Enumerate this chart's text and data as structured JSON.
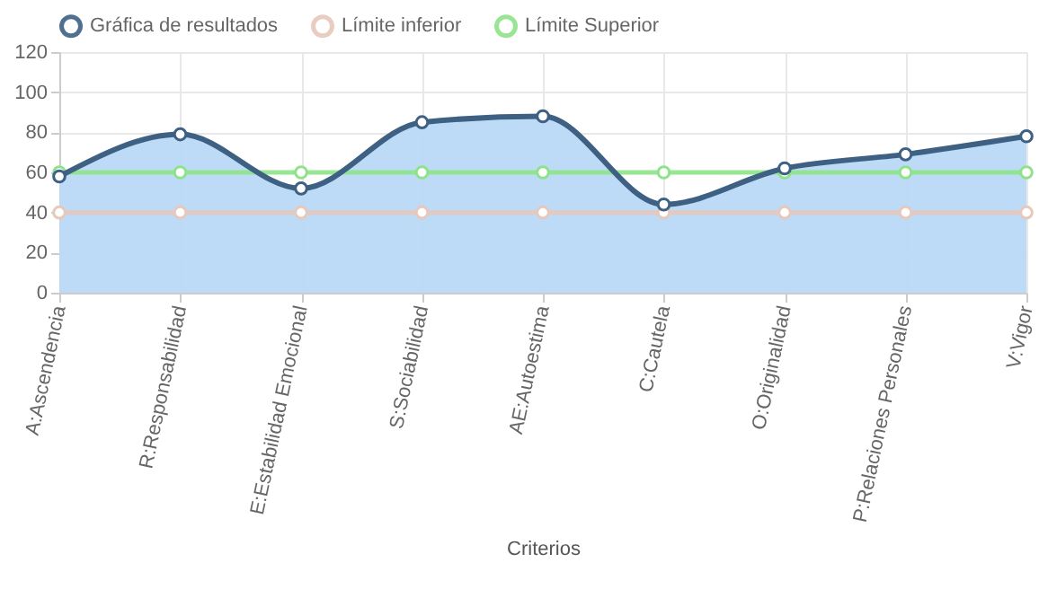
{
  "chart_data": {
    "type": "area",
    "xlabel": "Criterios",
    "categories": [
      "A:Ascendencia",
      "R:Responsabilidad",
      "E:Estabilidad Emocional",
      "S:Sociabilidad",
      "AE:Autoestima",
      "C:Cautela",
      "O:Originalidad",
      "P:Relaciones Personales",
      "V:Vigor"
    ],
    "series": [
      {
        "name": "Gráfica de resultados",
        "color": "#3e6183",
        "values": [
          58,
          79,
          52,
          85,
          88,
          44,
          62,
          69,
          78
        ]
      },
      {
        "name": "Límite inferior",
        "type": "line",
        "color": "#e6c8bc",
        "values": [
          40,
          40,
          40,
          40,
          40,
          40,
          40,
          40,
          40
        ]
      },
      {
        "name": "Límite Superior",
        "type": "line",
        "color": "#8ee38a",
        "values": [
          60,
          60,
          60,
          60,
          60,
          60,
          60,
          60,
          60
        ]
      }
    ],
    "ylim": [
      0,
      120
    ],
    "yticks": [
      0,
      20,
      40,
      60,
      80,
      100,
      120
    ],
    "grid": true,
    "legend": "top",
    "marker": "circle"
  }
}
